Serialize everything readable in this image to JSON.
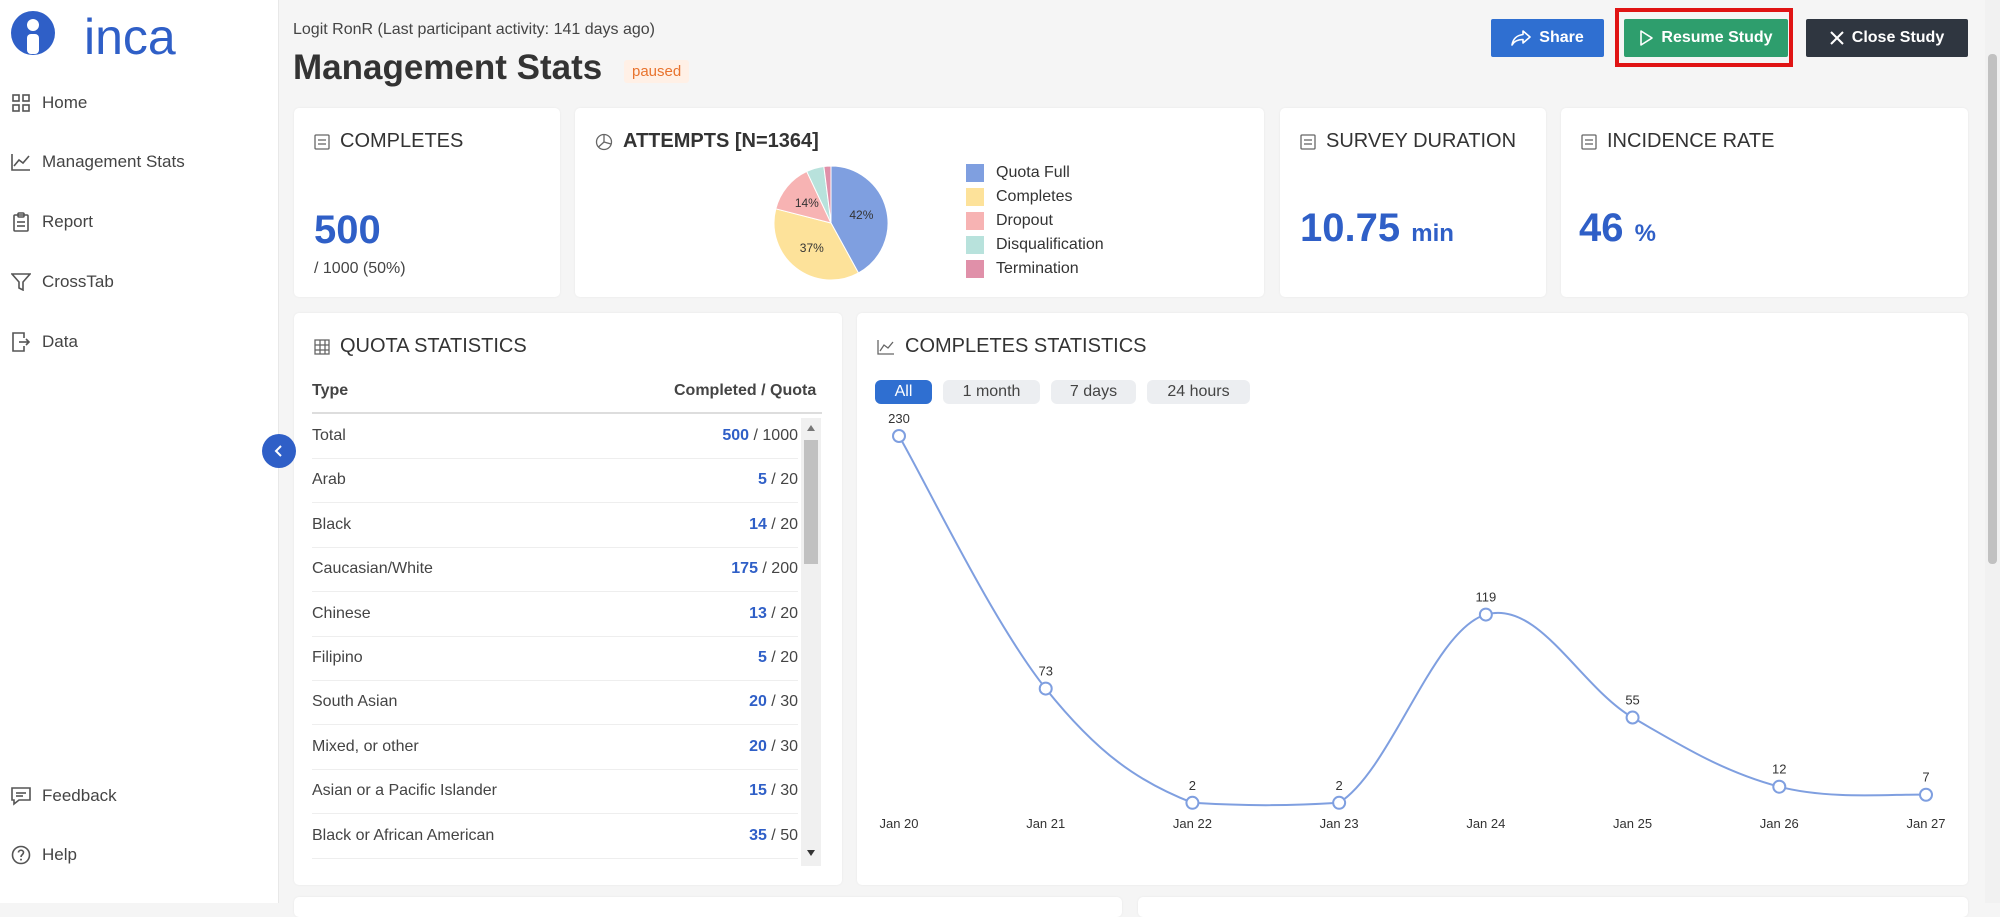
{
  "app": {
    "logo_text": "inca"
  },
  "sidebar": {
    "items": [
      {
        "label": "Home"
      },
      {
        "label": "Management Stats"
      },
      {
        "label": "Report"
      },
      {
        "label": "CrossTab"
      },
      {
        "label": "Data"
      }
    ],
    "bottom_items": [
      {
        "label": "Feedback"
      },
      {
        "label": "Help"
      }
    ]
  },
  "header": {
    "subtitle": "Logit RonR (Last participant activity: 141 days ago)",
    "title": "Management Stats",
    "status": "paused",
    "share_label": "Share",
    "resume_label": "Resume Study",
    "close_label": "Close Study"
  },
  "completes_card": {
    "title": "COMPLETES",
    "value": "500",
    "sub": "/ 1000 (50%)"
  },
  "attempts_card": {
    "title": "ATTEMPTS [N=1364]",
    "legend": [
      {
        "label": "Quota Full",
        "color": "#7f9fe0"
      },
      {
        "label": "Completes",
        "color": "#fde29a"
      },
      {
        "label": "Dropout",
        "color": "#f7b3b3"
      },
      {
        "label": "Disqualification",
        "color": "#b8e2dc"
      },
      {
        "label": "Termination",
        "color": "#e090a9"
      }
    ],
    "slice_labels": [
      "42%",
      "37%",
      "14%"
    ]
  },
  "duration_card": {
    "title": "SURVEY DURATION",
    "value": "10.75",
    "unit": "min"
  },
  "incidence_card": {
    "title": "INCIDENCE RATE",
    "value": "46",
    "unit": "%"
  },
  "quota": {
    "title": "QUOTA STATISTICS",
    "col_type": "Type",
    "col_completed": "Completed / Quota",
    "rows": [
      {
        "type": "Total",
        "completed": "500",
        "quota": " / 1000"
      },
      {
        "type": "Arab",
        "completed": "5",
        "quota": " / 20"
      },
      {
        "type": "Black",
        "completed": "14",
        "quota": " / 20"
      },
      {
        "type": "Caucasian/White",
        "completed": "175",
        "quota": " / 200"
      },
      {
        "type": "Chinese",
        "completed": "13",
        "quota": " / 20"
      },
      {
        "type": "Filipino",
        "completed": "5",
        "quota": " / 20"
      },
      {
        "type": "South Asian",
        "completed": "20",
        "quota": " / 30"
      },
      {
        "type": "Mixed, or other",
        "completed": "20",
        "quota": " / 30"
      },
      {
        "type": "Asian or a Pacific Islander",
        "completed": "15",
        "quota": " / 30"
      },
      {
        "type": "Black or African American",
        "completed": "35",
        "quota": " / 50"
      }
    ]
  },
  "completes_stats": {
    "title": "COMPLETES STATISTICS",
    "filters": [
      "All",
      "1 month",
      "7 days",
      "24 hours"
    ],
    "active_filter": "All"
  },
  "chart_data": [
    {
      "type": "pie",
      "title": "ATTEMPTS [N=1364]",
      "categories": [
        "Quota Full",
        "Completes",
        "Dropout",
        "Disqualification",
        "Termination"
      ],
      "values": [
        42,
        37,
        14,
        5,
        2
      ],
      "colors": [
        "#7f9fe0",
        "#fde29a",
        "#f7b3b3",
        "#b8e2dc",
        "#e090a9"
      ]
    },
    {
      "type": "line",
      "title": "COMPLETES STATISTICS",
      "categories": [
        "Jan 20",
        "Jan 21",
        "Jan 22",
        "Jan 23",
        "Jan 24",
        "Jan 25",
        "Jan 26",
        "Jan 27"
      ],
      "values": [
        230,
        73,
        2,
        2,
        119,
        55,
        12,
        7
      ],
      "grid": false,
      "color": "#7f9fe0"
    }
  ]
}
